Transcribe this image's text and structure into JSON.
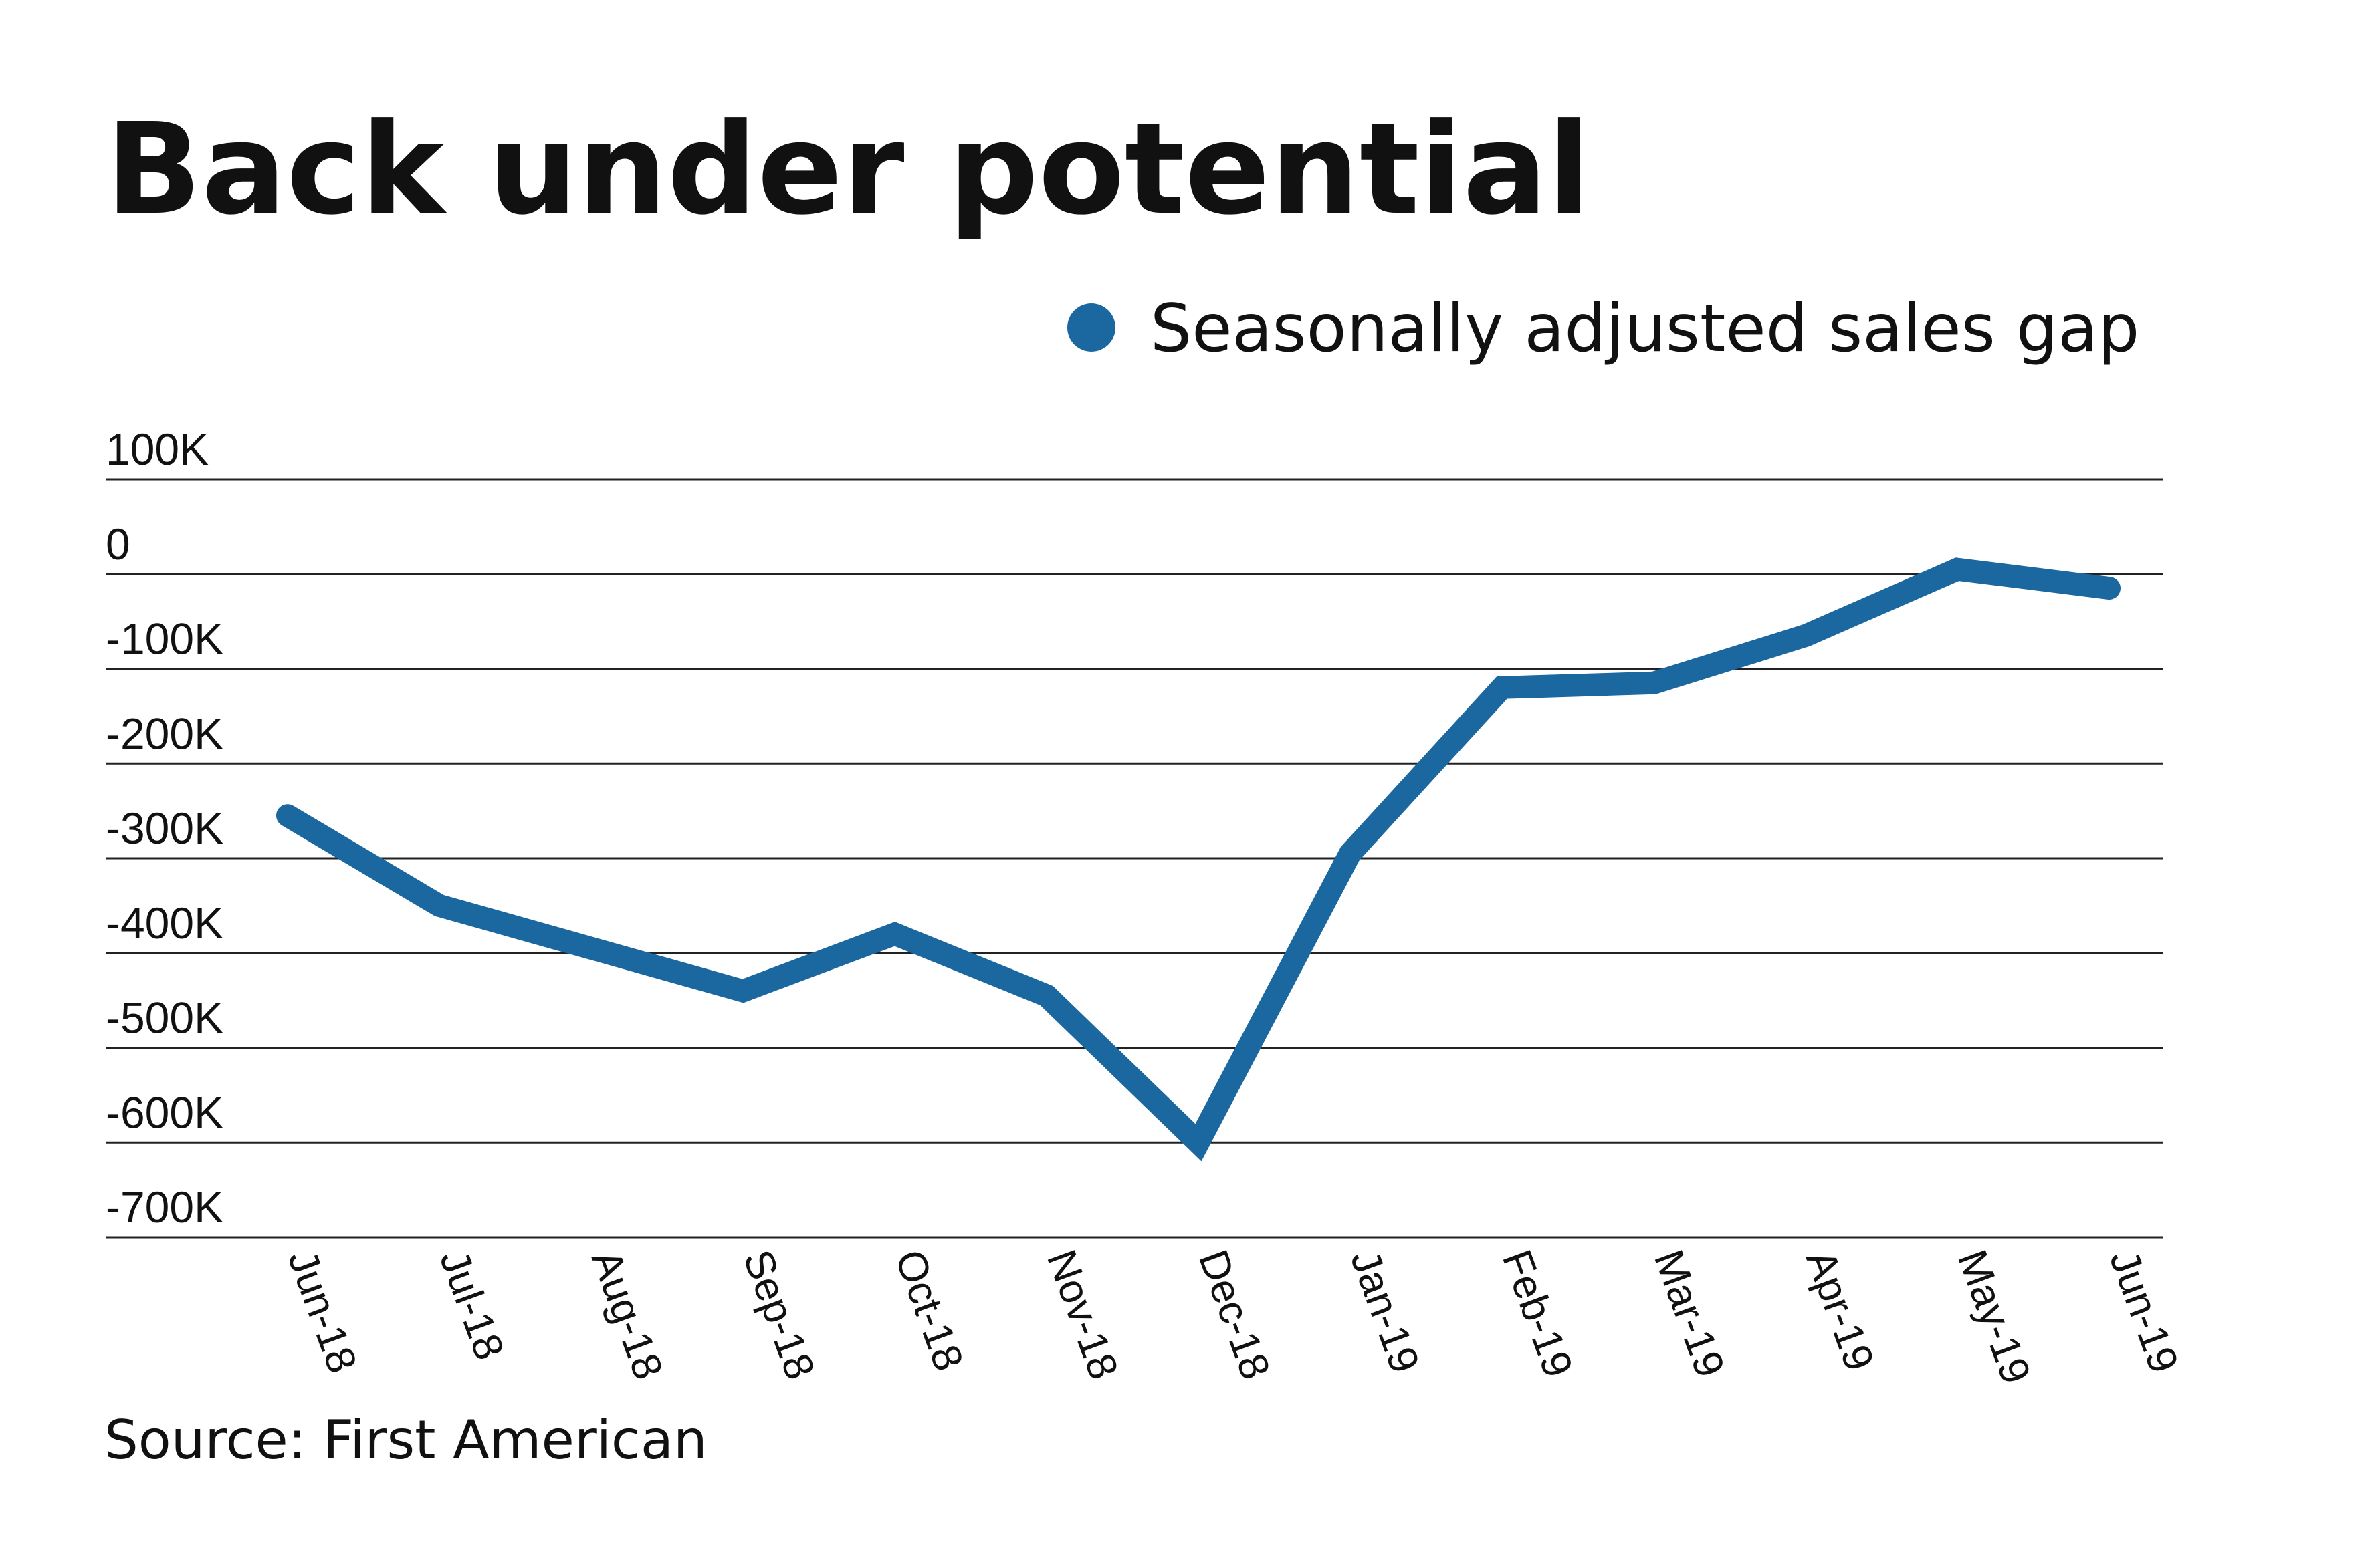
{
  "chart_data": {
    "type": "line",
    "title": "Back under potential",
    "source": "Source: First American",
    "categories": [
      "Jun-18",
      "Jul-18",
      "Aug-18",
      "Sep-18",
      "Oct-18",
      "Nov-18",
      "Dec-18",
      "Jan-19",
      "Feb-19",
      "Mar-19",
      "Apr-19",
      "May-19",
      "Jun-19"
    ],
    "series": [
      {
        "name": "Seasonally adjusted sales gap",
        "values": [
          -255000,
          -350000,
          -395000,
          -440000,
          -380000,
          -445000,
          -600000,
          -295000,
          -120000,
          -115000,
          -65000,
          5000,
          -15000
        ],
        "color": "#1b67a0"
      }
    ],
    "yticks": [
      100000,
      0,
      -100000,
      -200000,
      -300000,
      -400000,
      -500000,
      -600000,
      -700000
    ],
    "ytick_labels": [
      "100K",
      "0",
      "-100K",
      "-200K",
      "-300K",
      "-400K",
      "-500K",
      "-600K",
      "-700K"
    ],
    "ylim": [
      -700000,
      100000
    ],
    "grid": true,
    "legend_position": "top-right",
    "xlabel": "",
    "ylabel": ""
  }
}
